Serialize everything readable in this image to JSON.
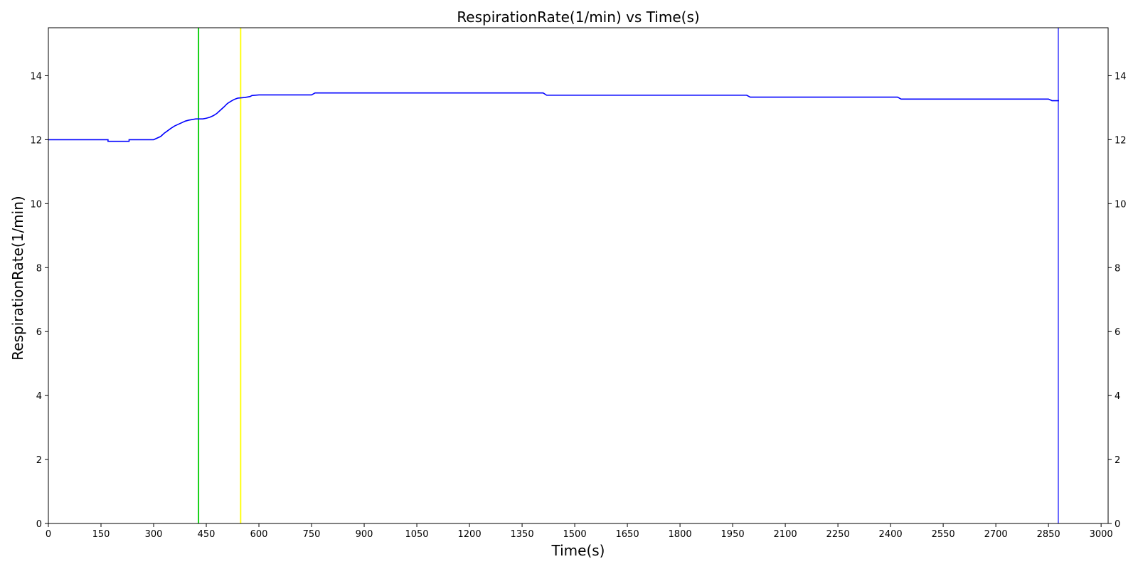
{
  "chart_data": {
    "type": "line",
    "title": "RespirationRate(1/min) vs Time(s)",
    "xlabel": "Time(s)",
    "ylabel": "RespirationRate(1/min)",
    "xlim": [
      0,
      3020
    ],
    "ylim": [
      0,
      15.5
    ],
    "x_ticks": [
      0,
      150,
      300,
      450,
      600,
      750,
      900,
      1050,
      1200,
      1350,
      1500,
      1650,
      1800,
      1950,
      2100,
      2250,
      2400,
      2550,
      2700,
      2850,
      3000
    ],
    "y_ticks": [
      0,
      2,
      4,
      6,
      8,
      10,
      12,
      14
    ],
    "grid": false,
    "right_axis_ticks": true,
    "colors": {
      "series": "#0000ff",
      "marker_green": "#00cc00",
      "marker_yellow": "#ffff00",
      "marker_blue": "#5555ff"
    },
    "vertical_markers": [
      {
        "x": 428,
        "color": "#00cc00"
      },
      {
        "x": 548,
        "color": "#ffff00"
      },
      {
        "x": 2878,
        "color": "#5555ff"
      }
    ],
    "series": [
      {
        "x": [
          0,
          170,
          170,
          230,
          230,
          300,
          310,
          320,
          330,
          340,
          350,
          360,
          370,
          380,
          390,
          400,
          410,
          420,
          440,
          450,
          460,
          470,
          480,
          490,
          500,
          510,
          520,
          530,
          540,
          560,
          575,
          580,
          600,
          650,
          700,
          750,
          760,
          800,
          900,
          1000,
          1100,
          1200,
          1300,
          1350,
          1410,
          1420,
          1500,
          1600,
          1700,
          1800,
          1900,
          1990,
          2000,
          2100,
          2200,
          2300,
          2420,
          2430,
          2500,
          2600,
          2700,
          2800,
          2850,
          2860,
          2880
        ],
        "y": [
          12.0,
          12.0,
          11.95,
          11.95,
          12.0,
          12.0,
          12.05,
          12.1,
          12.2,
          12.28,
          12.36,
          12.43,
          12.48,
          12.53,
          12.58,
          12.61,
          12.63,
          12.65,
          12.65,
          12.67,
          12.7,
          12.75,
          12.82,
          12.92,
          13.02,
          13.13,
          13.2,
          13.26,
          13.3,
          13.32,
          13.35,
          13.38,
          13.4,
          13.4,
          13.4,
          13.4,
          13.46,
          13.46,
          13.46,
          13.46,
          13.46,
          13.46,
          13.46,
          13.46,
          13.46,
          13.39,
          13.39,
          13.39,
          13.39,
          13.39,
          13.39,
          13.39,
          13.33,
          13.33,
          13.33,
          13.33,
          13.33,
          13.27,
          13.27,
          13.27,
          13.27,
          13.27,
          13.27,
          13.22,
          13.22
        ]
      }
    ]
  }
}
